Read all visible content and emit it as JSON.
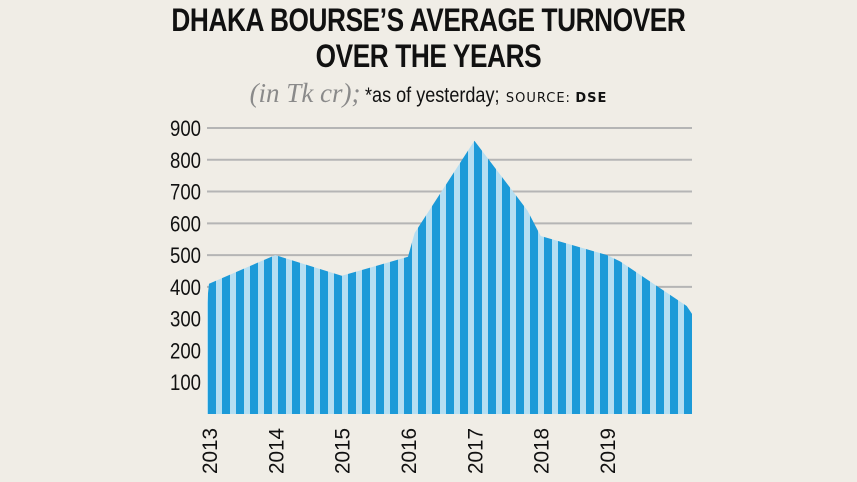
{
  "chart_data": {
    "type": "area",
    "title_line1": "DHAKA BOURSE’S AVERAGE TURNOVER",
    "title_line2": "OVER THE YEARS",
    "unit": "(in Tk cr);",
    "note": "*as of yesterday;",
    "source_label": "SOURCE:",
    "source": "DSE",
    "xlabel": "",
    "ylabel": "",
    "ylim": [
      0,
      900
    ],
    "yticks": [
      100,
      200,
      300,
      400,
      500,
      600,
      700,
      800,
      900
    ],
    "ytick_labels": [
      "100",
      "200",
      "300",
      "400",
      "500",
      "600",
      "700",
      "800",
      "900"
    ],
    "xtick_labels": [
      "2013",
      "2014",
      "2015",
      "2016",
      "2017",
      "2018",
      "2019"
    ],
    "x": [
      2012.97,
      2013.0,
      2014.0,
      2015.0,
      2016.0,
      2016.1,
      2017.0,
      2017.8,
      2018.0,
      2019.0,
      2019.2,
      2020.2,
      2020.28
    ],
    "values": [
      350,
      410,
      500,
      435,
      495,
      570,
      860,
      640,
      560,
      500,
      480,
      340,
      315
    ],
    "x_range": [
      2012.97,
      2020.28
    ],
    "colors": {
      "stripe_dark": "#1c9ad8",
      "stripe_light": "#b4def2",
      "grid": "#b5b5b5"
    }
  }
}
